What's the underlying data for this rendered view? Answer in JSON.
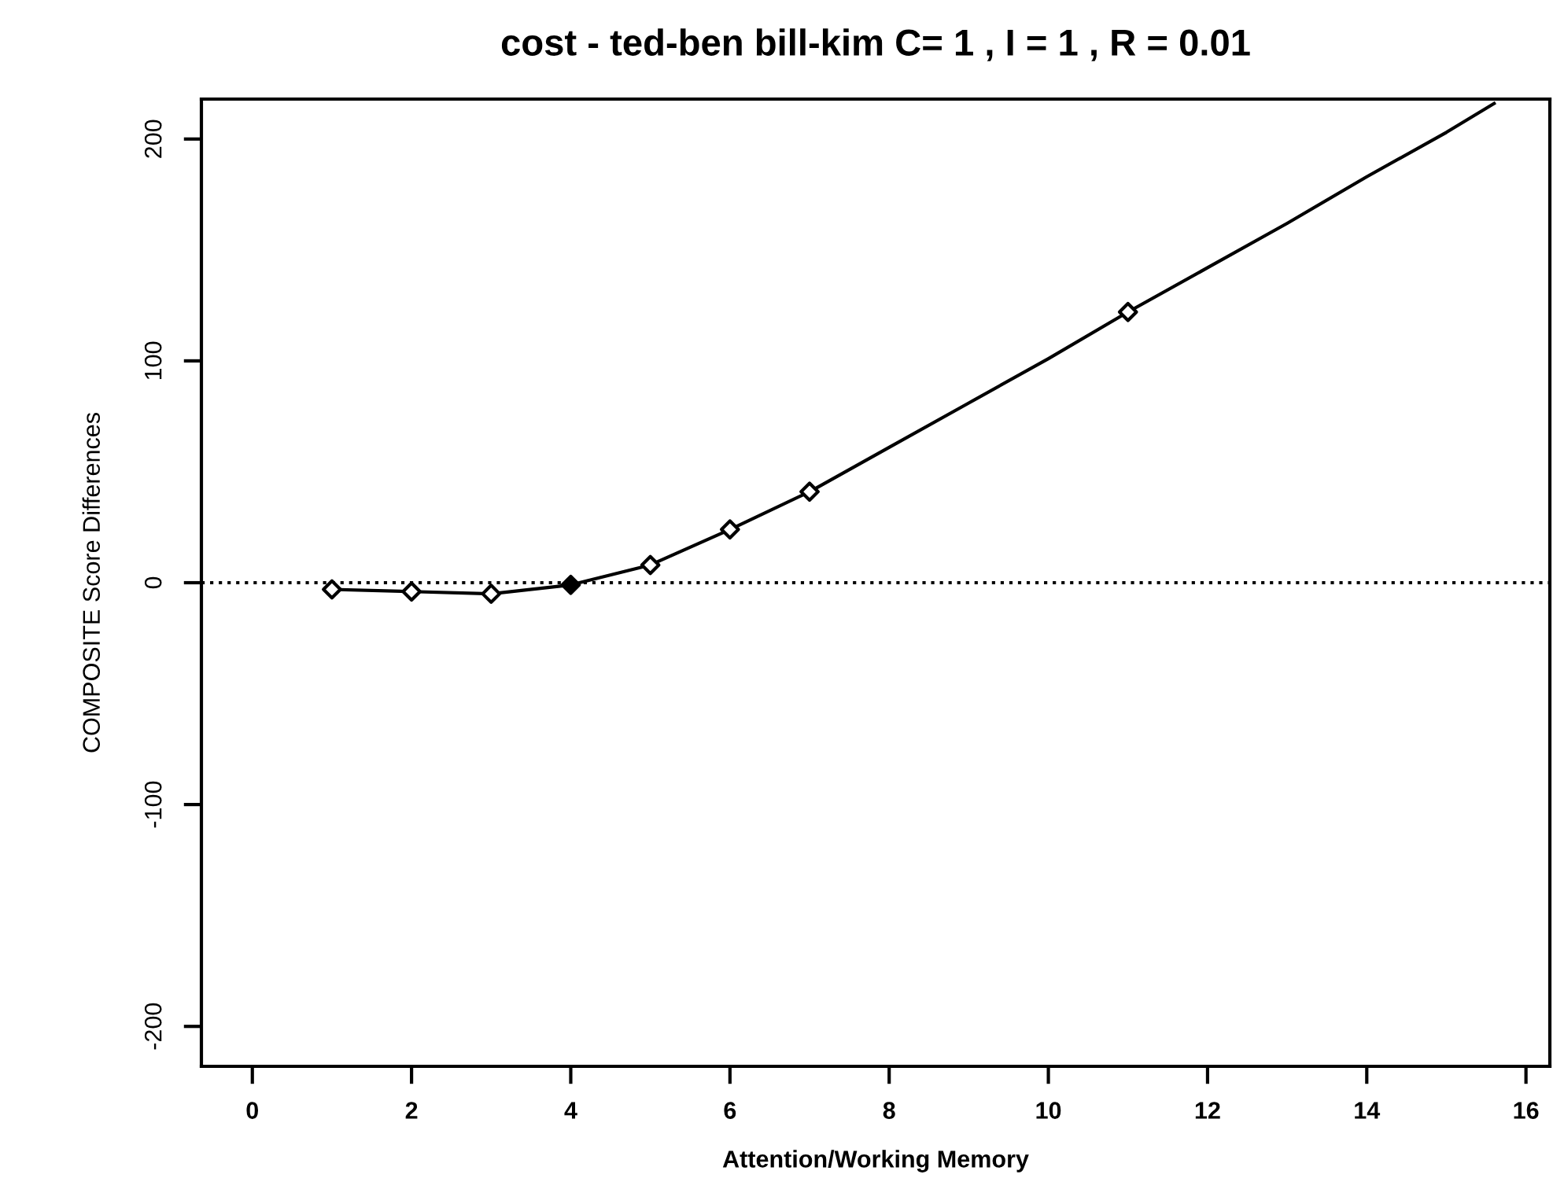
{
  "chart_data": {
    "type": "line",
    "title": "cost - ted-ben bill-kim C= 1 , I = 1 , R = 0.01",
    "xlabel": "Attention/Working Memory",
    "ylabel": "COMPOSITE Score Differences",
    "series": [
      {
        "color": "#000000",
        "x": [
          1,
          2,
          3,
          4,
          5,
          6,
          7,
          8,
          9,
          10,
          11,
          12,
          13,
          14,
          15,
          15.6
        ],
        "values": [
          -3,
          -4,
          -5,
          -1,
          8,
          24,
          41,
          61,
          81,
          101,
          122,
          142,
          162,
          183,
          203,
          216
        ],
        "line_style": "solid",
        "marker": "none"
      },
      {
        "type": "scatter",
        "color": "#000000",
        "colors": [
          "#ffffff",
          "#ffffff",
          "#ffffff",
          "#000000",
          "#ffffff",
          "#ffffff",
          "#ffffff",
          "#ffffff"
        ],
        "x": [
          1,
          2,
          3,
          4,
          5,
          6,
          7,
          11
        ],
        "values": [
          -3,
          -4,
          -5,
          -1,
          8,
          24,
          41,
          122
        ],
        "marker": "diamond"
      }
    ],
    "ref_lines": [
      {
        "axis": "y",
        "value": 0,
        "line_style": "dotted",
        "color": "#000000"
      }
    ],
    "xlim": [
      -0.64,
      16.3
    ],
    "ylim": [
      -218,
      218
    ],
    "xticks": [
      0,
      2,
      4,
      6,
      8,
      10,
      12,
      14,
      16
    ],
    "yticks": [
      -200,
      -100,
      0,
      100,
      200
    ],
    "grid": false,
    "legend": false
  }
}
